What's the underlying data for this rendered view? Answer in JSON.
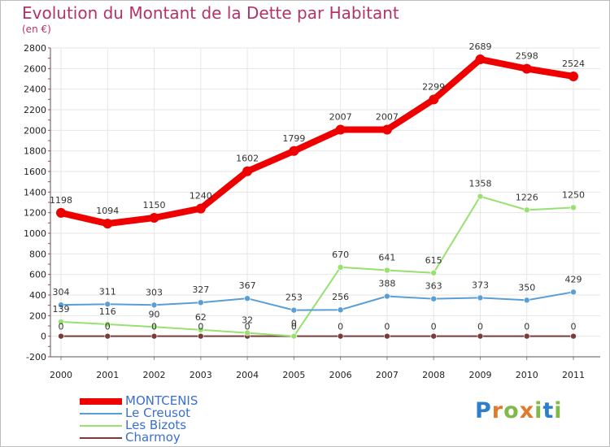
{
  "title": "Evolution du Montant de la Dette par Habitant",
  "subtitle": "(en €)",
  "brand": {
    "letters": [
      "P",
      "r",
      "o",
      "x",
      "i",
      "t",
      "i"
    ],
    "colors": [
      "#2f7fc8",
      "#e07b2b",
      "#7fb94a",
      "#e07b2b",
      "#7fb94a",
      "#2f7fc8",
      "#7fb94a"
    ]
  },
  "chart_data": {
    "type": "line",
    "x": [
      "2000",
      "2001",
      "2002",
      "2003",
      "2004",
      "2005",
      "2006",
      "2007",
      "2008",
      "2009",
      "2010",
      "2011"
    ],
    "ylim": [
      -200,
      2800
    ],
    "yticks": [
      "-200",
      "0",
      "200",
      "400",
      "600",
      "800",
      "1000",
      "1200",
      "1400",
      "1600",
      "1800",
      "2000",
      "2200",
      "2400",
      "2600",
      "2800"
    ],
    "grid": true,
    "legend_position": "bottom-left",
    "series": [
      {
        "name": "MONTCENIS",
        "color": "#ee0000",
        "values": [
          1198,
          1094,
          1150,
          1240,
          1602,
          1799,
          2007,
          2007,
          2299,
          2689,
          2598,
          2524
        ],
        "labels": [
          "1198",
          "1094",
          "1150",
          "1240",
          "1602",
          "1799",
          "2007",
          "2007",
          "2299",
          "2689",
          "2598",
          "2524"
        ]
      },
      {
        "name": "Le Creusot",
        "color": "#5a9ed6",
        "values": [
          304,
          311,
          303,
          327,
          367,
          253,
          256,
          388,
          363,
          373,
          350,
          429
        ],
        "labels": [
          "304",
          "311",
          "303",
          "327",
          "367",
          "253",
          "256",
          "388",
          "363",
          "373",
          "350",
          "429"
        ]
      },
      {
        "name": "Les Bizots",
        "color": "#98e070",
        "values": [
          139,
          116,
          90,
          62,
          32,
          0,
          670,
          641,
          615,
          1358,
          1226,
          1250
        ],
        "labels": [
          "139",
          "116",
          "90",
          "62",
          "32",
          "0",
          "670",
          "641",
          "615",
          "1358",
          "1226",
          "1250"
        ]
      },
      {
        "name": "Charmoy",
        "color": "#7a3b3b",
        "values": [
          0,
          0,
          0,
          0,
          0,
          0,
          0,
          0,
          0,
          0,
          0,
          0
        ],
        "labels": [
          "0",
          "0",
          "0",
          "0",
          "0",
          "0",
          "0",
          "0",
          "0",
          "0",
          "0",
          "0"
        ]
      }
    ]
  }
}
